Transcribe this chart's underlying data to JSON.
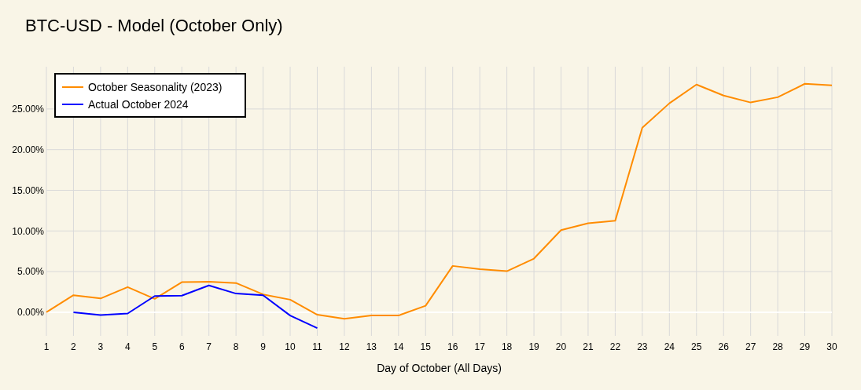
{
  "chart_data": {
    "type": "line",
    "title": "BTC-USD - Model (October Only)",
    "xlabel": "Day of October (All Days)",
    "x": [
      1,
      2,
      3,
      4,
      5,
      6,
      7,
      8,
      9,
      10,
      11,
      12,
      13,
      14,
      15,
      16,
      17,
      18,
      19,
      20,
      21,
      22,
      23,
      24,
      25,
      26,
      27,
      28,
      29,
      30
    ],
    "xlim": [
      1,
      30
    ],
    "xticks": [
      1,
      2,
      3,
      4,
      5,
      6,
      7,
      8,
      9,
      10,
      11,
      12,
      13,
      14,
      15,
      16,
      17,
      18,
      19,
      20,
      21,
      22,
      23,
      24,
      25,
      26,
      27,
      28,
      29,
      30
    ],
    "ylim": [
      -2.9,
      30.2
    ],
    "yticks": [
      {
        "value": 0,
        "label": "0.00%"
      },
      {
        "value": 5,
        "label": "5.00%"
      },
      {
        "value": 10,
        "label": "10.00%"
      },
      {
        "value": 15,
        "label": "15.00%"
      },
      {
        "value": 20,
        "label": "20.00%"
      },
      {
        "value": 25,
        "label": "25.00%"
      }
    ],
    "series": [
      {
        "name": "October Seasonality (2023)",
        "color": "#ff8c00",
        "values": [
          0,
          2.1,
          1.7,
          3.1,
          1.65,
          3.7,
          3.75,
          3.6,
          2.2,
          1.55,
          -0.3,
          -0.8,
          -0.4,
          -0.4,
          0.8,
          5.7,
          5.3,
          5.05,
          6.6,
          10.1,
          10.95,
          11.25,
          22.7,
          25.7,
          28.0,
          26.65,
          25.8,
          26.45,
          28.1,
          27.9
        ]
      },
      {
        "name": "Actual October 2024",
        "color": "#0000ff",
        "x": [
          2,
          3,
          4,
          5,
          6,
          7,
          8,
          9,
          10,
          11
        ],
        "values": [
          0,
          -0.35,
          -0.15,
          2.0,
          2.05,
          3.3,
          2.3,
          2.1,
          -0.4,
          -1.95
        ]
      }
    ],
    "ref_lines": [
      {
        "axis": "y",
        "value": 0,
        "color": "#ffffff"
      }
    ],
    "grid": true,
    "legend": "top left",
    "marker": "none",
    "line_style": "solid"
  }
}
